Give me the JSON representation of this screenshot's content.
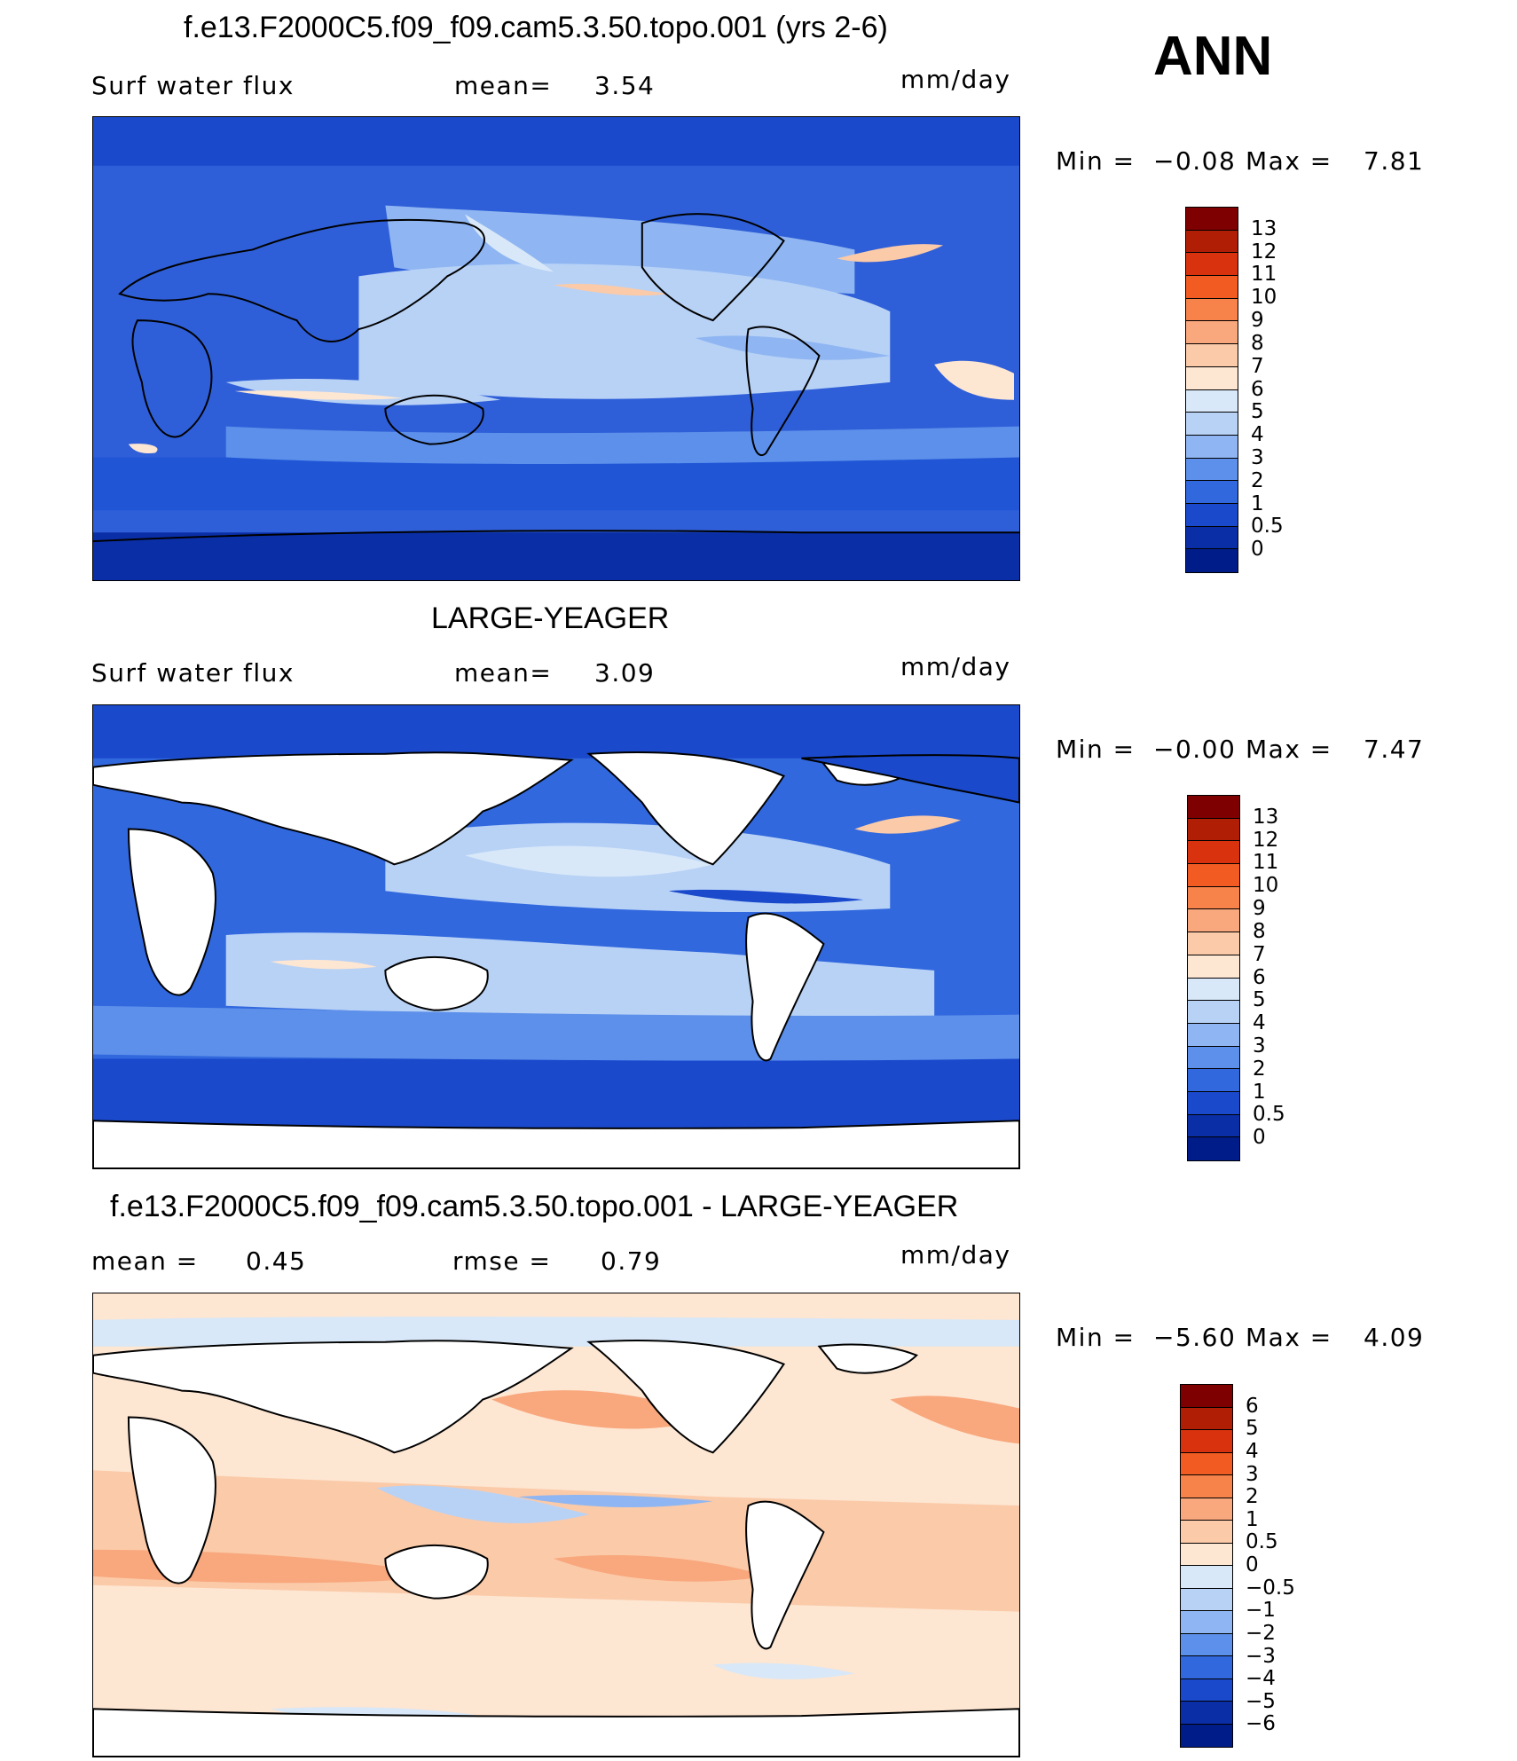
{
  "season": "ANN",
  "panels": [
    {
      "title": "f.e13.F2000C5.f09_f09.cam5.3.50.topo.001 (yrs 2-6)",
      "left_label": "Surf  water  flux",
      "mid_label": "mean=",
      "mid_value": "3.54",
      "units": "mm/day",
      "min_label": "Min  =",
      "min_value": "−0.08",
      "max_label": "Max  =",
      "max_value": "7.81",
      "colorbar": {
        "labels": [
          "13",
          "12",
          "11",
          "10",
          "9",
          "8",
          "7",
          "6",
          "5",
          "4",
          "3",
          "2",
          "1",
          "0.5",
          "0"
        ],
        "colors": [
          "#7f0000",
          "#b01e06",
          "#d9320e",
          "#f25c22",
          "#f7834a",
          "#f9a77d",
          "#fbcaa8",
          "#fde6d2",
          "#d8e8f8",
          "#b8d2f6",
          "#8fb6f2",
          "#5d90ea",
          "#3168de",
          "#1a49cc",
          "#0a2ea6",
          "#001c88"
        ]
      }
    },
    {
      "title": "LARGE-YEAGER",
      "left_label": "Surf  water  flux",
      "mid_label": "mean=",
      "mid_value": "3.09",
      "units": "mm/day",
      "min_label": "Min  =",
      "min_value": "−0.00",
      "max_label": "Max  =",
      "max_value": "7.47",
      "colorbar": {
        "labels": [
          "13",
          "12",
          "11",
          "10",
          "9",
          "8",
          "7",
          "6",
          "5",
          "4",
          "3",
          "2",
          "1",
          "0.5",
          "0"
        ],
        "colors": [
          "#7f0000",
          "#b01e06",
          "#d9320e",
          "#f25c22",
          "#f7834a",
          "#f9a77d",
          "#fbcaa8",
          "#fde6d2",
          "#d8e8f8",
          "#b8d2f6",
          "#8fb6f2",
          "#5d90ea",
          "#3168de",
          "#1a49cc",
          "#0a2ea6",
          "#001c88"
        ]
      }
    },
    {
      "title": "f.e13.F2000C5.f09_f09.cam5.3.50.topo.001 - LARGE-YEAGER",
      "left_label": "mean  =",
      "left_value": "0.45",
      "mid_label": "rmse  =",
      "mid_value": "0.79",
      "units": "mm/day",
      "min_label": "Min  =",
      "min_value": "−5.60",
      "max_label": "Max  =",
      "max_value": "4.09",
      "colorbar": {
        "labels": [
          "6",
          "5",
          "4",
          "3",
          "2",
          "1",
          "0.5",
          "0",
          "−0.5",
          "−1",
          "−2",
          "−3",
          "−4",
          "−5",
          "−6"
        ],
        "colors": [
          "#7f0000",
          "#b01e06",
          "#d9320e",
          "#f25c22",
          "#f7834a",
          "#f9a77d",
          "#fbcaa8",
          "#fde6d2",
          "#d8e8f8",
          "#b8d2f6",
          "#8fb6f2",
          "#5d90ea",
          "#3168de",
          "#1a49cc",
          "#0a2ea6",
          "#001c88"
        ]
      }
    }
  ]
}
